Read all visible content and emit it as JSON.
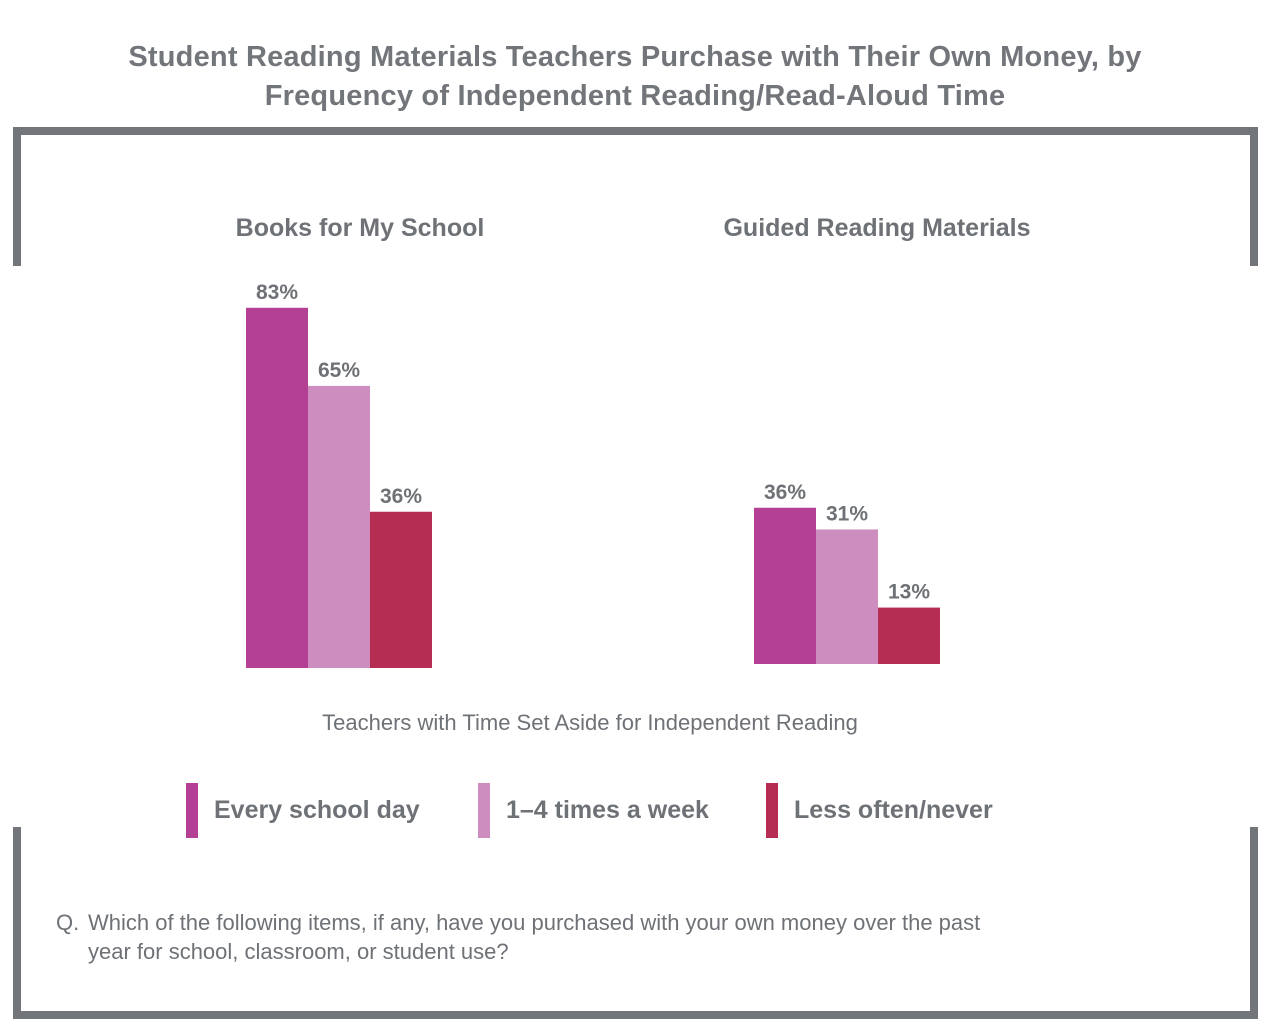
{
  "title": {
    "line1": "Student Reading Materials Teachers Purchase with Their Own Money, by",
    "line2": "Frequency of Independent Reading/Read-Aloud Time"
  },
  "x_caption": "Teachers with Time Set Aside for Independent Reading",
  "legend": [
    {
      "label": "Every school day",
      "color": "#b34095"
    },
    {
      "label": "1–4 times a week",
      "color": "#cd8ebf"
    },
    {
      "label": "Less often/never",
      "color": "#b52d52"
    }
  ],
  "question": {
    "prefix": "Q.",
    "line1": "Which of the following items, if any, have you purchased with your own money over the past",
    "line2": "year for school, classroom, or student use?"
  },
  "colors": {
    "frame": "#72767a",
    "text": "#6e7276",
    "every_school_day": "#b34095",
    "one_to_four_week": "#cd8ebf",
    "less_often": "#b52d52"
  },
  "chart_data": {
    "type": "bar",
    "categories": [
      "Books for My School",
      "Guided Reading Materials"
    ],
    "series": [
      {
        "name": "Every school day",
        "values": [
          83,
          36
        ]
      },
      {
        "name": "1–4 times a week",
        "values": [
          65,
          31
        ]
      },
      {
        "name": "Less often/never",
        "values": [
          36,
          13
        ]
      }
    ],
    "value_labels": [
      [
        "83%",
        "36%"
      ],
      [
        "65%",
        "31%"
      ],
      [
        "36%",
        "13%"
      ]
    ],
    "ylim": [
      0,
      100
    ],
    "xlabel": "Teachers with Time Set Aside for Independent Reading",
    "grid": false,
    "legend_position": "bottom"
  }
}
